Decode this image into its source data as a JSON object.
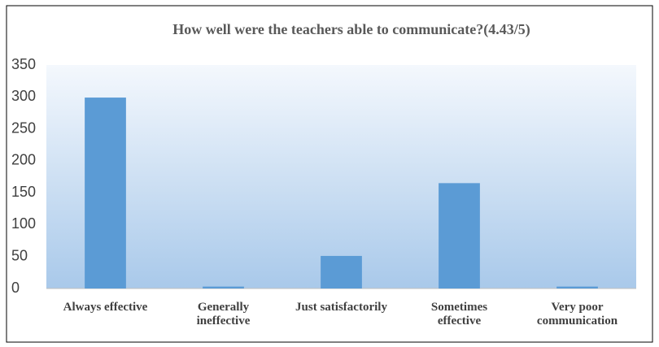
{
  "chart_data": {
    "type": "bar",
    "title": "How well were the teachers able to communicate?(4.43/5)",
    "categories": [
      "Always effective",
      "Generally\nineffective",
      "Just satisfactorily",
      "Sometimes\neffective",
      "Very poor\ncommunication"
    ],
    "values": [
      299,
      3,
      51,
      165,
      3
    ],
    "color": "#5b9bd5",
    "ylim": [
      0,
      350
    ],
    "yticks": [
      0,
      50,
      100,
      150,
      200,
      250,
      300,
      350
    ],
    "grid": false
  }
}
